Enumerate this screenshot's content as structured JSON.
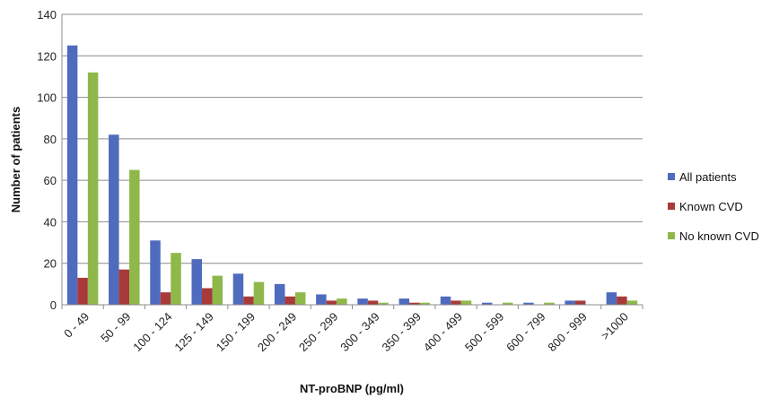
{
  "chart_data": {
    "type": "bar",
    "title": "",
    "xlabel": "NT-proBNP (pg/ml)",
    "ylabel": "Number of patients",
    "ylim": [
      0,
      140
    ],
    "yticks": [
      0,
      20,
      40,
      60,
      80,
      100,
      120,
      140
    ],
    "grid": true,
    "legend_position": "right",
    "categories": [
      "0 - 49",
      "50 - 99",
      "100 - 124",
      "125 - 149",
      "150 - 199",
      "200 - 249",
      "250 - 299",
      "300 - 349",
      "350 - 399",
      "400 - 499",
      "500 - 599",
      "600 - 799",
      "800 - 999",
      ">1000"
    ],
    "series": [
      {
        "name": "All patients",
        "color": "#4F6BBE",
        "values": [
          125,
          82,
          31,
          22,
          15,
          10,
          5,
          3,
          3,
          4,
          1,
          1,
          2,
          6
        ]
      },
      {
        "name": "Known CVD",
        "color": "#A83A3A",
        "values": [
          13,
          17,
          6,
          8,
          4,
          4,
          2,
          2,
          1,
          2,
          0,
          0,
          2,
          4
        ]
      },
      {
        "name": "No known CVD",
        "color": "#8FB84A",
        "values": [
          112,
          65,
          25,
          14,
          11,
          6,
          3,
          1,
          1,
          2,
          1,
          1,
          0,
          2
        ]
      }
    ]
  }
}
